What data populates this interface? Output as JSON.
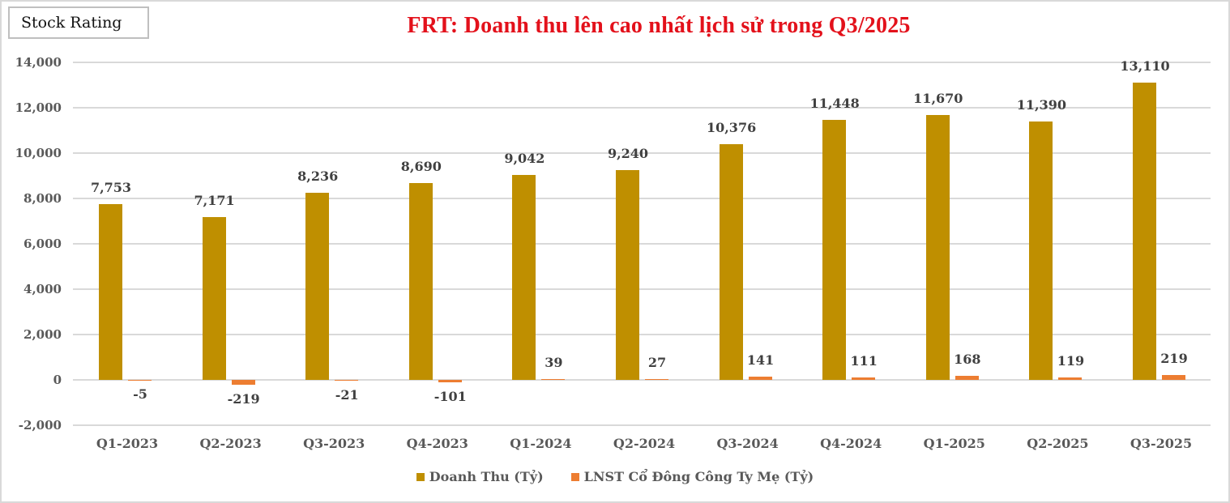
{
  "badge": {
    "label": "Stock Rating"
  },
  "title": "FRT: Doanh thu lên cao nhất lịch sử trong Q3/2025",
  "colors": {
    "revenue": "#bf8f00",
    "profit": "#ed7d31",
    "title": "#e3111b",
    "grid": "#d9d9d9"
  },
  "y_axis": {
    "ticks": [
      {
        "value": 14000,
        "label": "14,000"
      },
      {
        "value": 12000,
        "label": "12,000"
      },
      {
        "value": 10000,
        "label": "10,000"
      },
      {
        "value": 8000,
        "label": "8,000"
      },
      {
        "value": 6000,
        "label": "6,000"
      },
      {
        "value": 4000,
        "label": "4,000"
      },
      {
        "value": 2000,
        "label": "2,000"
      },
      {
        "value": 0,
        "label": "0"
      },
      {
        "value": -2000,
        "label": "-2,000"
      }
    ]
  },
  "legend": [
    {
      "label": "Doanh Thu (Tỷ)",
      "color": "#bf8f00"
    },
    {
      "label": "LNST Cổ Đông Công Ty Mẹ (Tỷ)",
      "color": "#ed7d31"
    }
  ],
  "chart_data": {
    "type": "bar",
    "title": "FRT: Doanh thu lên cao nhất lịch sử trong Q3/2025",
    "xlabel": "",
    "ylabel": "",
    "ylim": [
      -2000,
      14000
    ],
    "grid": true,
    "legend_position": "bottom",
    "categories": [
      "Q1-2023",
      "Q2-2023",
      "Q3-2023",
      "Q4-2023",
      "Q1-2024",
      "Q2-2024",
      "Q3-2024",
      "Q4-2024",
      "Q1-2025",
      "Q2-2025",
      "Q3-2025"
    ],
    "series": [
      {
        "name": "Doanh Thu (Tỷ)",
        "color": "#bf8f00",
        "values": [
          7753,
          7171,
          8236,
          8690,
          9042,
          9240,
          10376,
          11448,
          11670,
          11390,
          13110
        ],
        "labels": [
          "7,753",
          "7,171",
          "8,236",
          "8,690",
          "9,042",
          "9,240",
          "10,376",
          "11,448",
          "11,670",
          "11,390",
          "13,110"
        ]
      },
      {
        "name": "LNST Cổ Đông Công Ty Mẹ (Tỷ)",
        "color": "#ed7d31",
        "values": [
          -5,
          -219,
          -21,
          -101,
          39,
          27,
          141,
          111,
          168,
          119,
          219
        ],
        "labels": [
          "-5",
          "-219",
          "-21",
          "-101",
          "39",
          "27",
          "141",
          "111",
          "168",
          "119",
          "219"
        ]
      }
    ]
  }
}
